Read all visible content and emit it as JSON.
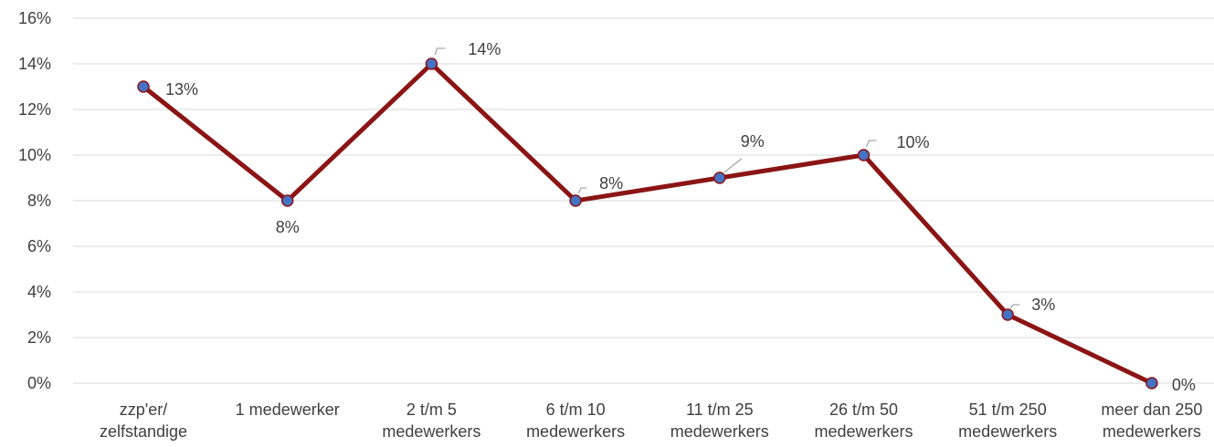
{
  "chart_data": {
    "type": "line",
    "categories": [
      [
        "zzp'er/",
        "zelfstandige"
      ],
      [
        "1 medewerker"
      ],
      [
        "2 t/m 5",
        "medewerkers"
      ],
      [
        "6 t/m 10",
        "medewerkers"
      ],
      [
        "11 t/m 25",
        "medewerkers"
      ],
      [
        "26 t/m 50",
        "medewerkers"
      ],
      [
        "51 t/m 250",
        "medewerkers"
      ],
      [
        "meer dan 250",
        "medewerkers"
      ]
    ],
    "values": [
      13,
      8,
      14,
      8,
      9,
      10,
      3,
      0
    ],
    "data_labels": [
      "13%",
      "8%",
      "14%",
      "8%",
      "9%",
      "10%",
      "3%",
      "0%"
    ],
    "ylim": [
      0,
      16
    ],
    "yticks": [
      0,
      2,
      4,
      6,
      8,
      10,
      12,
      14,
      16
    ],
    "ytick_labels": [
      "0%",
      "2%",
      "4%",
      "6%",
      "8%",
      "10%",
      "12%",
      "14%",
      "16%"
    ],
    "grid": true,
    "title": "",
    "xlabel": "",
    "ylabel": "",
    "colors": {
      "line": "#8B1414",
      "marker_fill": "#4472C4",
      "marker_stroke": "#8B1414",
      "grid": "#D9D9D9",
      "text": "#404040",
      "leader": "#A6A6A6"
    }
  }
}
